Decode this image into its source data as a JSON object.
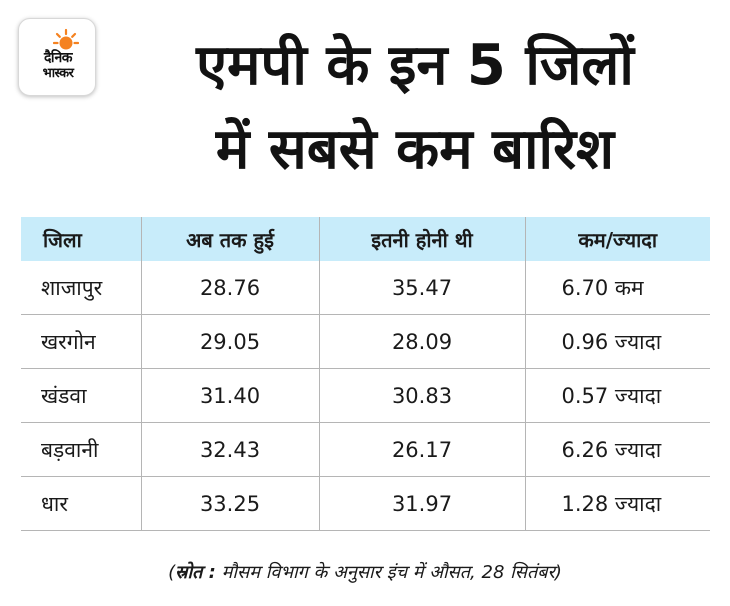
{
  "logo": {
    "line1": "दैनिक",
    "line2": "भास्कर",
    "sun_color": "#f58220"
  },
  "headline": {
    "line1": "एमपी के इन 5 जिलों",
    "line2": "में सबसे कम बारिश"
  },
  "table": {
    "header_bg": "#c8ecfa",
    "columns": [
      "जिला",
      "अब तक हुई",
      "इतनी होनी थी",
      "कम/ज्यादा"
    ],
    "rows": [
      [
        "शाजापुर",
        "28.76",
        "35.47",
        "6.70 कम"
      ],
      [
        "खरगोन",
        "29.05",
        "28.09",
        "0.96 ज्यादा"
      ],
      [
        "खंडवा",
        "31.40",
        "30.83",
        "0.57 ज्यादा"
      ],
      [
        "बड़वानी",
        "32.43",
        "26.17",
        "6.26 ज्यादा"
      ],
      [
        "धार",
        "33.25",
        "31.97",
        "1.28 ज्यादा"
      ]
    ]
  },
  "source": {
    "open": "(",
    "label": "स्रोत :",
    "text": " मौसम विभाग के अनुसार इंच में औसत, 28 सितंबर",
    "close": ")"
  }
}
